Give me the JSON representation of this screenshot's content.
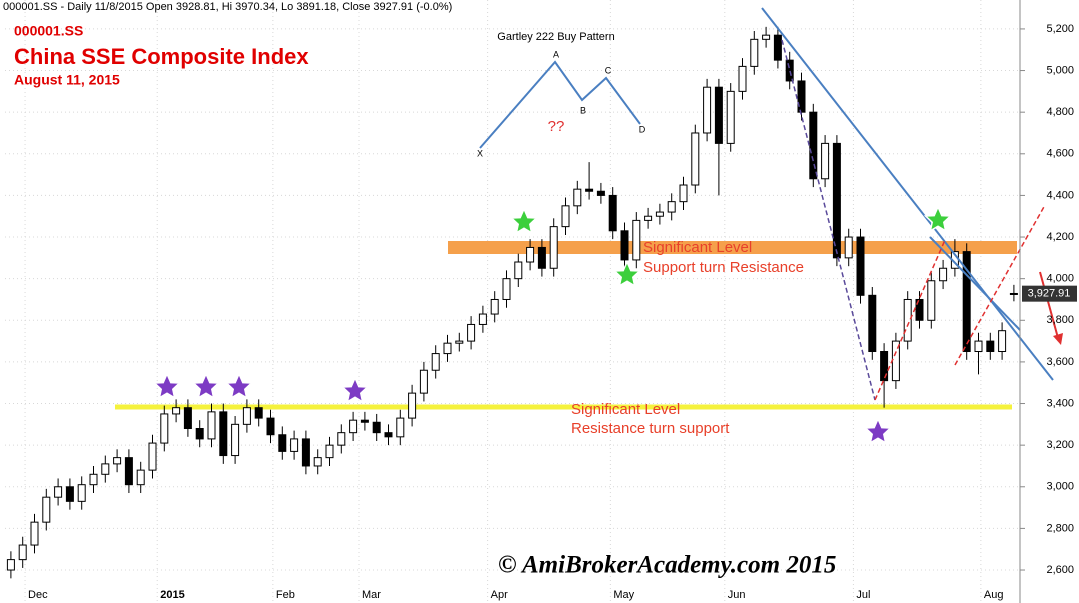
{
  "header": "000001.SS - Daily 11/8/2015 Open 3928.81, Hi 3970.34, Lo 3891.18, Close 3927.91 (-0.0%)",
  "chart_data": {
    "type": "candlestick",
    "subtitle": "000001.SS",
    "title": "China SSE Composite Index",
    "date": "August 11, 2015",
    "open": [
      2600,
      2650,
      2720,
      2830,
      2950,
      3000,
      2930,
      3010,
      3060,
      3110,
      3140,
      3010,
      3080,
      3210,
      3350,
      3380,
      3280,
      3230,
      3360,
      3150,
      3300,
      3380,
      3330,
      3250,
      3170,
      3230,
      3100,
      3140,
      3200,
      3260,
      3320,
      3310,
      3260,
      3240,
      3330,
      3450,
      3560,
      3640,
      3690,
      3700,
      3780,
      3830,
      3900,
      4000,
      4080,
      4150,
      4050,
      4250,
      4350,
      4430,
      4420,
      4400,
      4230,
      4090,
      4280,
      4300,
      4320,
      4370,
      4450,
      4700,
      4920,
      4650,
      4900,
      5020,
      5150,
      5170,
      5050,
      4950,
      4800,
      4480,
      4650,
      4100,
      4200,
      3920,
      3650,
      3510,
      3700,
      3900,
      3800,
      3990,
      4050,
      4130,
      3650,
      3700,
      3650,
      3928.81
    ],
    "high": [
      2690,
      2760,
      2870,
      2990,
      3040,
      3040,
      3050,
      3100,
      3150,
      3180,
      3180,
      3120,
      3250,
      3390,
      3420,
      3420,
      3320,
      3400,
      3400,
      3340,
      3420,
      3420,
      3370,
      3290,
      3270,
      3270,
      3180,
      3240,
      3300,
      3360,
      3360,
      3350,
      3300,
      3370,
      3490,
      3600,
      3680,
      3730,
      3740,
      3820,
      3870,
      3940,
      4040,
      4120,
      4190,
      4190,
      4290,
      4390,
      4470,
      4560,
      4460,
      4440,
      4270,
      4320,
      4340,
      4360,
      4410,
      4490,
      4740,
      4960,
      4960,
      4940,
      5060,
      5190,
      5210,
      5210,
      5090,
      4990,
      4840,
      4690,
      4690,
      4240,
      4240,
      3960,
      3690,
      3740,
      3940,
      3940,
      4030,
      4090,
      4190,
      4170,
      3740,
      3740,
      3790,
      3970.34
    ],
    "low": [
      2560,
      2610,
      2680,
      2790,
      2910,
      2890,
      2890,
      2970,
      3020,
      3070,
      2970,
      2970,
      3040,
      3170,
      3310,
      3240,
      3190,
      3190,
      3110,
      3110,
      3260,
      3290,
      3210,
      3130,
      3130,
      3060,
      3060,
      3100,
      3160,
      3220,
      3270,
      3220,
      3200,
      3200,
      3290,
      3410,
      3520,
      3600,
      3650,
      3660,
      3740,
      3790,
      3860,
      3960,
      4040,
      4010,
      4010,
      4210,
      4310,
      4380,
      4360,
      4190,
      4050,
      4050,
      4240,
      4260,
      4280,
      4330,
      4410,
      4660,
      4400,
      4610,
      4860,
      4980,
      5110,
      5010,
      4910,
      4760,
      4440,
      4440,
      4060,
      4060,
      3880,
      3610,
      3380,
      3470,
      3660,
      3760,
      3760,
      3950,
      4010,
      3610,
      3540,
      3610,
      3610,
      3891.18
    ],
    "close": [
      2650,
      2720,
      2830,
      2950,
      3000,
      2930,
      3010,
      3060,
      3110,
      3140,
      3010,
      3080,
      3210,
      3350,
      3380,
      3280,
      3230,
      3360,
      3150,
      3300,
      3380,
      3330,
      3250,
      3170,
      3230,
      3100,
      3140,
      3200,
      3260,
      3320,
      3310,
      3260,
      3240,
      3330,
      3450,
      3560,
      3640,
      3690,
      3700,
      3780,
      3830,
      3900,
      4000,
      4080,
      4150,
      4050,
      4250,
      4350,
      4430,
      4420,
      4400,
      4230,
      4090,
      4280,
      4300,
      4320,
      4370,
      4450,
      4700,
      4920,
      4650,
      4900,
      5020,
      5150,
      5170,
      5050,
      4950,
      4800,
      4480,
      4650,
      4100,
      4200,
      3920,
      3650,
      3510,
      3700,
      3900,
      3800,
      3990,
      4050,
      4130,
      3650,
      3700,
      3650,
      3750,
      3927.91
    ],
    "last_close_label": "3,927.91",
    "xlim": [
      -0.5,
      85.5
    ],
    "xticks": [
      {
        "value": 1.2,
        "label": "Dec"
      },
      {
        "value": 12.4,
        "label": "2015"
      },
      {
        "value": 22.2,
        "label": "Feb"
      },
      {
        "value": 29.5,
        "label": "Mar"
      },
      {
        "value": 40.4,
        "label": "Apr"
      },
      {
        "value": 50.8,
        "label": "May"
      },
      {
        "value": 60.5,
        "label": "Jun"
      },
      {
        "value": 71.4,
        "label": "Jul"
      },
      {
        "value": 82.2,
        "label": "Aug"
      }
    ],
    "ylim": [
      2504,
      5339
    ],
    "yticks": [
      {
        "value": 2600,
        "label": "2,600"
      },
      {
        "value": 2800,
        "label": "2,800"
      },
      {
        "value": 3000,
        "label": "3,000"
      },
      {
        "value": 3200,
        "label": "3,200"
      },
      {
        "value": 3400,
        "label": "3,400"
      },
      {
        "value": 3600,
        "label": "3,600"
      },
      {
        "value": 3800,
        "label": "3,800"
      },
      {
        "value": 4000,
        "label": "4,000"
      },
      {
        "value": 4200,
        "label": "4,200"
      },
      {
        "value": 4400,
        "label": "4,400"
      },
      {
        "value": 4600,
        "label": "4,600"
      },
      {
        "value": 4800,
        "label": "4,800"
      },
      {
        "value": 5000,
        "label": "5,000"
      },
      {
        "value": 5200,
        "label": "5,200"
      }
    ],
    "grid": true,
    "up_color": "#ffffff",
    "down_color": "#000000",
    "annotations": {
      "pattern_title": "Gartley 222 Buy Pattern",
      "pattern_points": [
        "X",
        "A",
        "B",
        "C",
        "D"
      ],
      "pattern_note": "??",
      "level_upper": [
        "Significant Level",
        "Support turn Resistance"
      ],
      "level_lower": [
        "Significant Level",
        "Resistance turn support"
      ],
      "watermark": "© AmiBrokerAcademy.com 2015"
    }
  }
}
